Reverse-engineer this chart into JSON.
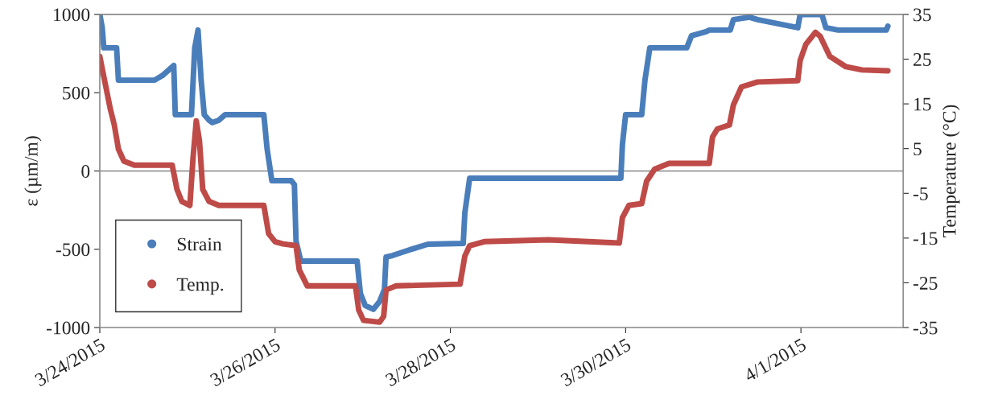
{
  "chart_data": {
    "type": "line",
    "xlabel": null,
    "ylabel": "ε (µm/m)",
    "y2label": "Temperature (°C)",
    "xlim": [
      "2015-03-24",
      "2015-04-02T04:00"
    ],
    "xticks": [
      {
        "value": "2015-03-24",
        "label": "3/24/2015"
      },
      {
        "value": "2015-03-26",
        "label": "3/26/2015"
      },
      {
        "value": "2015-03-28",
        "label": "3/28/2015"
      },
      {
        "value": "2015-03-30",
        "label": "3/30/2015"
      },
      {
        "value": "2015-04-01",
        "label": "4/1/2015"
      }
    ],
    "ylim": [
      -1000,
      1000
    ],
    "yticks": [
      -1000,
      -500,
      0,
      500,
      1000
    ],
    "y2lim": [
      -35,
      35
    ],
    "y2ticks": [
      -35,
      -25,
      -15,
      -5,
      5,
      15,
      25,
      35
    ],
    "ref_lines": [
      {
        "axis": "y",
        "value": 0,
        "color": "#868686"
      }
    ],
    "legend": "bottom left",
    "grid": false,
    "marker": "circle",
    "series": [
      {
        "name": "Strain",
        "color": "#4a7ebb",
        "x": [
          "2015-03-24T00:00",
          "2015-03-24T00:40",
          "2015-03-24T01:06",
          "2015-03-24T04:36",
          "2015-03-24T05:06",
          "2015-03-24T15:00",
          "2015-03-24T17:10",
          "2015-03-24T20:15",
          "2015-03-24T20:40",
          "2015-03-25T01:06",
          "2015-03-25T02:00",
          "2015-03-25T02:54",
          "2015-03-25T03:45",
          "2015-03-25T04:36",
          "2015-03-25T05:56",
          "2015-03-25T06:50",
          "2015-03-25T08:35",
          "2015-03-25T10:21",
          "2015-03-25T20:55",
          "2015-03-25T21:48",
          "2015-03-25T23:07",
          "2015-03-26T04:25",
          "2015-03-26T05:17",
          "2015-03-26T05:44",
          "2015-03-26T07:03",
          "2015-03-26T22:28",
          "2015-03-26T23:21",
          "2015-03-27T00:40",
          "2015-03-27T02:55",
          "2015-03-27T04:38",
          "2015-03-27T05:57",
          "2015-03-27T06:23",
          "2015-03-27T08:09",
          "2015-03-27T13:26",
          "2015-03-27T17:50",
          "2015-03-28T03:31",
          "2015-03-28T03:58",
          "2015-03-28T05:17",
          "2015-03-29T22:41",
          "2015-03-29T23:07",
          "2015-03-30T00:00",
          "2015-03-30T04:24",
          "2015-03-30T05:17",
          "2015-03-30T06:37",
          "2015-03-30T16:44",
          "2015-03-30T18:03",
          "2015-03-30T22:01",
          "2015-03-30T22:54",
          "2015-03-31T04:38",
          "2015-03-31T05:31",
          "2015-03-31T09:55",
          "2015-03-31T12:07",
          "2015-03-31T23:08",
          "2015-03-31T23:47",
          "2015-04-01T05:44",
          "2015-04-01T06:50",
          "2015-04-01T10:08",
          "2015-04-01T23:22",
          "2015-04-01T23:48"
        ],
        "values": [
          1000,
          915,
          787,
          787,
          580,
          580,
          610,
          674,
          360,
          360,
          787,
          900,
          580,
          360,
          324,
          309,
          324,
          360,
          360,
          144,
          -62,
          -62,
          -87,
          -447,
          -576,
          -576,
          -782,
          -859,
          -884,
          -833,
          -756,
          -550,
          -540,
          -499,
          -468,
          -463,
          -267,
          -46,
          -46,
          170,
          360,
          360,
          580,
          787,
          787,
          864,
          890,
          900,
          900,
          967,
          982,
          967,
          915,
          1000,
          1000,
          915,
          900,
          900,
          925
        ]
      },
      {
        "name": "Temp.",
        "color": "#be4b48",
        "axis": "y2",
        "x": [
          "2015-03-24T00:00",
          "2015-03-24T01:19",
          "2015-03-24T02:52",
          "2015-03-24T03:58",
          "2015-03-24T05:06",
          "2015-03-24T06:36",
          "2015-03-24T09:28",
          "2015-03-24T19:49",
          "2015-03-24T21:08",
          "2015-03-24T22:27",
          "2015-03-25T00:40",
          "2015-03-25T01:33",
          "2015-03-25T02:25",
          "2015-03-25T03:18",
          "2015-03-25T04:11",
          "2015-03-25T05:56",
          "2015-03-25T08:35",
          "2015-03-25T20:55",
          "2015-03-25T22:14",
          "2015-03-26T00:00",
          "2015-03-26T02:12",
          "2015-03-26T05:44",
          "2015-03-26T06:37",
          "2015-03-26T08:49",
          "2015-03-26T22:01",
          "2015-03-26T22:54",
          "2015-03-27T00:13",
          "2015-03-27T04:38",
          "2015-03-27T05:44",
          "2015-03-27T06:23",
          "2015-03-27T09:02",
          "2015-03-28T02:39",
          "2015-03-28T03:58",
          "2015-03-28T05:17",
          "2015-03-28T09:15",
          "2015-03-29T02:53",
          "2015-03-29T22:15",
          "2015-03-29T23:07",
          "2015-03-30T00:53",
          "2015-03-30T04:24",
          "2015-03-30T05:44",
          "2015-03-30T07:56",
          "2015-03-30T11:54",
          "2015-03-30T22:54",
          "2015-03-30T23:47",
          "2015-03-31T01:07",
          "2015-03-31T04:25",
          "2015-03-31T05:31",
          "2015-03-31T07:43",
          "2015-03-31T12:07",
          "2015-03-31T23:08",
          "2015-03-31T23:47",
          "2015-04-01T01:20",
          "2015-04-01T03:58",
          "2015-04-01T05:17",
          "2015-04-01T07:56",
          "2015-04-01T12:20",
          "2015-04-01T16:44",
          "2015-04-01T23:48"
        ],
        "values": [
          25.6,
          20.2,
          13.9,
          10.3,
          4.9,
          2.2,
          1.3,
          1.3,
          -4.1,
          -6.8,
          -7.7,
          3.1,
          11.2,
          6.7,
          -4.1,
          -6.8,
          -7.7,
          -7.7,
          -14,
          -15.8,
          -16.3,
          -16.7,
          -22.1,
          -25.7,
          -25.7,
          -31.1,
          -33.4,
          -33.8,
          -32.5,
          -26.6,
          -25.7,
          -25.3,
          -19,
          -16.7,
          -15.8,
          -15.4,
          -16.1,
          -10.4,
          -7.7,
          -7.3,
          -2.3,
          0.4,
          1.7,
          1.7,
          7.6,
          9.4,
          10.3,
          14.8,
          18.8,
          19.9,
          20.2,
          24.7,
          28.3,
          31.0,
          30.1,
          25.6,
          23.3,
          22.6,
          22.4
        ]
      }
    ]
  }
}
